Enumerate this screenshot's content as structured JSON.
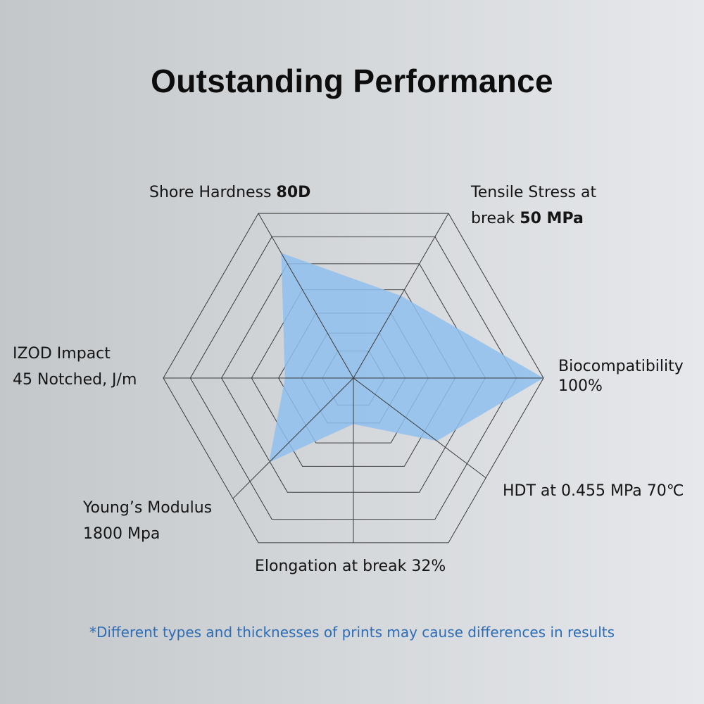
{
  "chart_data": {
    "type": "radar",
    "title": "Outstanding Performance",
    "axes": [
      {
        "name": "Biocompatibility",
        "label_lines": [
          "Biocompatibility",
          "100%"
        ],
        "value": 1.0
      },
      {
        "name": "Tensile Stress at break",
        "label_lines": [
          "Tensile Stress at",
          "break "
        ],
        "label_bold": "50 MPa",
        "value": 0.5
      },
      {
        "name": "Shore Hardness",
        "label_lines": [
          "Shore Hardness "
        ],
        "label_bold": "80D",
        "value": 0.76
      },
      {
        "name": "IZOD Impact",
        "label_lines": [
          "IZOD Impact",
          "45 Notched, J/m"
        ],
        "value": 0.36
      },
      {
        "name": "Young's Modulus",
        "label_lines": [
          "Young’s Modulus",
          "1800 Mpa"
        ],
        "value": 0.7
      },
      {
        "name": "Elongation at break",
        "label_lines": [
          "Elongation at break 32%"
        ],
        "value": 0.28
      },
      {
        "name": "HDT",
        "label_lines": [
          "HDT at 0.455 MPa 70℃"
        ],
        "value": 0.63
      }
    ],
    "grid_levels": [
      1,
      0.858,
      0.694,
      0.536,
      0.394,
      0.273,
      0.164
    ],
    "range": [
      0,
      1
    ],
    "fill_color": "#8fc0ee",
    "grid_color": "#3a3a3a",
    "footnote": "*Different types and thicknesses of prints may cause differences in results",
    "footnote_color": "#2e6db5"
  }
}
